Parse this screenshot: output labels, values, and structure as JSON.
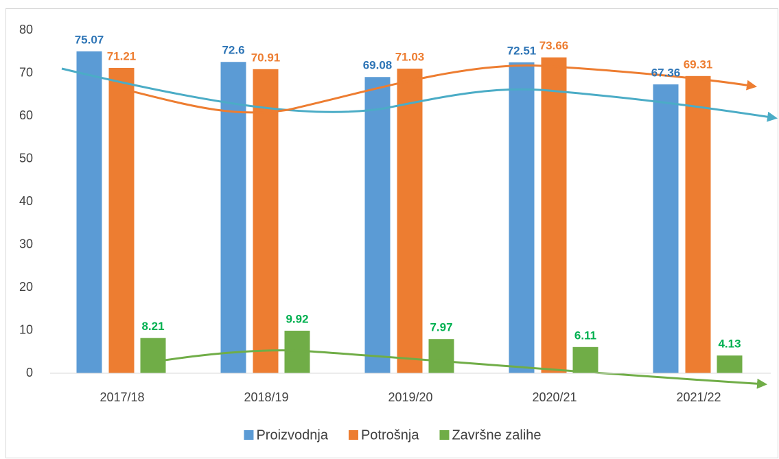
{
  "chart_data": {
    "type": "bar",
    "categories": [
      "2017/18",
      "2018/19",
      "2019/20",
      "2020/21",
      "2021/22"
    ],
    "series": [
      {
        "name": "Proizvodnja",
        "color": "#5b9bd5",
        "label_color": "#2e75b6",
        "values": [
          75.07,
          72.6,
          69.08,
          72.51,
          67.36
        ]
      },
      {
        "name": "Potrošnja",
        "color": "#ed7d31",
        "label_color": "#ed7d31",
        "values": [
          71.21,
          70.91,
          71.03,
          73.66,
          69.31
        ]
      },
      {
        "name": "Završne zalihe",
        "color": "#70ad47",
        "label_color": "#00b050",
        "values": [
          8.21,
          9.92,
          7.97,
          6.11,
          4.13
        ]
      }
    ],
    "ylim": [
      0,
      80
    ],
    "yticks": [
      0,
      10,
      20,
      30,
      40,
      50,
      60,
      70,
      80
    ],
    "grid": false,
    "legend": "bottom"
  }
}
